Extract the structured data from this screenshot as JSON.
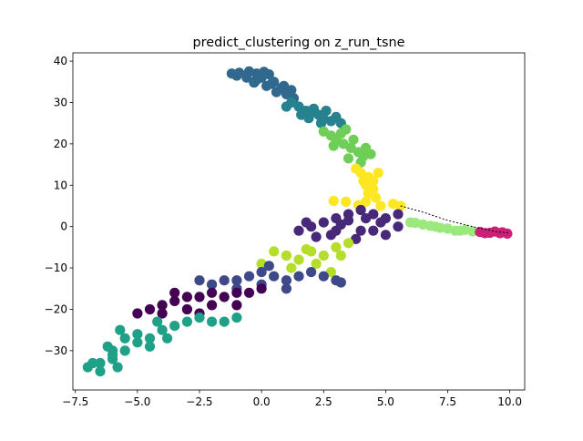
{
  "chart_data": {
    "type": "scatter",
    "title": "predict_clustering on z_run_tsne",
    "xlabel": "",
    "ylabel": "",
    "xlim": [
      -7.6,
      10.6
    ],
    "ylim": [
      -39.5,
      42
    ],
    "x_ticks": [
      -7.5,
      -5.0,
      -2.5,
      0.0,
      2.5,
      5.0,
      7.5,
      10.0
    ],
    "x_tick_labels": [
      "−7.5",
      "−5.0",
      "−2.5",
      "0.0",
      "2.5",
      "5.0",
      "7.5",
      "10.0"
    ],
    "y_ticks": [
      -30,
      -20,
      -10,
      0,
      10,
      20,
      30,
      40
    ],
    "y_tick_labels": [
      "−30",
      "−20",
      "−10",
      "0",
      "10",
      "20",
      "30",
      "40"
    ],
    "grid": false,
    "legend": "none",
    "clusters": [
      {
        "color": "#31688e",
        "points": [
          [
            -1.2,
            37
          ],
          [
            -1,
            36.5
          ],
          [
            -0.5,
            37.5
          ],
          [
            -0.2,
            37
          ],
          [
            0,
            36
          ],
          [
            0.3,
            36.8
          ],
          [
            0.5,
            35
          ],
          [
            0.2,
            34
          ],
          [
            -0.2,
            35.5
          ],
          [
            -0.6,
            36
          ],
          [
            0.8,
            33.5
          ],
          [
            1,
            32
          ],
          [
            0.6,
            32.5
          ],
          [
            1.3,
            31
          ],
          [
            -0.9,
            37.2
          ],
          [
            0.1,
            37.4
          ],
          [
            0.4,
            34.5
          ],
          [
            0.9,
            34
          ],
          [
            1.2,
            33
          ],
          [
            -0.3,
            34.8
          ]
        ]
      },
      {
        "color": "#26828e",
        "points": [
          [
            1.2,
            30
          ],
          [
            1.5,
            29
          ],
          [
            1.8,
            28
          ],
          [
            2,
            27.5
          ],
          [
            2.3,
            27
          ],
          [
            2.5,
            26
          ],
          [
            2.8,
            25.5
          ],
          [
            1.6,
            27
          ],
          [
            2.1,
            28.5
          ],
          [
            2.6,
            28
          ],
          [
            3,
            26.5
          ],
          [
            1,
            29
          ],
          [
            2.4,
            25
          ],
          [
            3.2,
            25
          ],
          [
            1.9,
            26.2
          ]
        ]
      },
      {
        "color": "#6ece58",
        "points": [
          [
            2.5,
            23
          ],
          [
            2.8,
            22
          ],
          [
            3,
            21
          ],
          [
            3.3,
            20
          ],
          [
            3.6,
            19
          ],
          [
            3.9,
            18
          ],
          [
            4.1,
            17
          ],
          [
            3.2,
            22.5
          ],
          [
            3.7,
            21
          ],
          [
            4.2,
            19
          ],
          [
            4.4,
            17.5
          ],
          [
            3.5,
            16.5
          ],
          [
            2.9,
            19.5
          ],
          [
            4,
            15.5
          ],
          [
            3.4,
            23.5
          ]
        ]
      },
      {
        "color": "#fde725",
        "points": [
          [
            3.8,
            14
          ],
          [
            4,
            13
          ],
          [
            4.3,
            12
          ],
          [
            4.5,
            11
          ],
          [
            4.2,
            10
          ],
          [
            4.5,
            9
          ],
          [
            4.3,
            8
          ],
          [
            4.6,
            7
          ],
          [
            4.2,
            6
          ],
          [
            4.8,
            5
          ],
          [
            5.3,
            5.5
          ],
          [
            5.6,
            5
          ],
          [
            3.4,
            6
          ],
          [
            2.9,
            6.2
          ],
          [
            3.9,
            5.2
          ],
          [
            4.7,
            13
          ],
          [
            4.1,
            11
          ]
        ]
      },
      {
        "color": "#482878",
        "points": [
          [
            1.5,
            -1
          ],
          [
            2,
            0
          ],
          [
            2.5,
            1
          ],
          [
            3,
            2
          ],
          [
            3.5,
            3
          ],
          [
            4,
            4
          ],
          [
            4.5,
            3
          ],
          [
            5,
            2
          ],
          [
            5.5,
            3
          ],
          [
            3,
            -1
          ],
          [
            4,
            -1
          ],
          [
            3.5,
            1.5
          ],
          [
            2.8,
            -2
          ],
          [
            4.5,
            -1
          ],
          [
            5,
            -2
          ],
          [
            5.5,
            0
          ],
          [
            4.8,
            1
          ],
          [
            2.2,
            -2.5
          ],
          [
            3.2,
            0.5
          ],
          [
            4.2,
            2
          ],
          [
            1.8,
            1
          ],
          [
            3.8,
            -3
          ]
        ]
      },
      {
        "color": "#b5de2b",
        "points": [
          [
            0.5,
            -6
          ],
          [
            1,
            -7
          ],
          [
            1.5,
            -8
          ],
          [
            2,
            -6
          ],
          [
            2.5,
            -7
          ],
          [
            3,
            -5
          ],
          [
            3.5,
            -4
          ],
          [
            2.2,
            -9
          ],
          [
            1.2,
            -10
          ],
          [
            0,
            -9
          ],
          [
            2.8,
            -11
          ],
          [
            1.8,
            -5.5
          ],
          [
            3.2,
            -7
          ]
        ]
      },
      {
        "color": "#3e4989",
        "points": [
          [
            -2,
            -14
          ],
          [
            -1.5,
            -13
          ],
          [
            -1,
            -13
          ],
          [
            -0.5,
            -12
          ],
          [
            0,
            -11
          ],
          [
            0.5,
            -12
          ],
          [
            1,
            -13
          ],
          [
            1.5,
            -12
          ],
          [
            2,
            -11
          ],
          [
            2.5,
            -12
          ],
          [
            3,
            -13
          ],
          [
            -1,
            -15
          ],
          [
            0,
            -14
          ],
          [
            1,
            -15
          ],
          [
            -2.5,
            -13
          ],
          [
            0.3,
            -9.5
          ],
          [
            3.2,
            -13.5
          ]
        ]
      },
      {
        "color": "#440154",
        "points": [
          [
            -5,
            -21
          ],
          [
            -4.5,
            -20
          ],
          [
            -4,
            -19
          ],
          [
            -3.5,
            -18
          ],
          [
            -3,
            -17
          ],
          [
            -2.5,
            -17
          ],
          [
            -2,
            -16
          ],
          [
            -1.5,
            -17
          ],
          [
            -1,
            -16
          ],
          [
            -0.5,
            -16
          ],
          [
            0,
            -15
          ],
          [
            -3,
            -20
          ],
          [
            -2,
            -19
          ],
          [
            -4,
            -21
          ],
          [
            -1,
            -19
          ],
          [
            -2.5,
            -21
          ],
          [
            -3.5,
            -16
          ]
        ]
      },
      {
        "color": "#1fa187",
        "points": [
          [
            -7,
            -34
          ],
          [
            -6.5,
            -33
          ],
          [
            -6,
            -32
          ],
          [
            -6.5,
            -35
          ],
          [
            -6,
            -31
          ],
          [
            -5.5,
            -30
          ],
          [
            -5,
            -28
          ],
          [
            -4.5,
            -27
          ],
          [
            -4,
            -25
          ],
          [
            -3.5,
            -24
          ],
          [
            -3,
            -23
          ],
          [
            -5,
            -26
          ],
          [
            -5.5,
            -27
          ],
          [
            -4.5,
            -29
          ],
          [
            -6,
            -30
          ],
          [
            -2.5,
            -22
          ],
          [
            -2,
            -23
          ],
          [
            -1.5,
            -23
          ],
          [
            -1,
            -22
          ],
          [
            -6.8,
            -33
          ],
          [
            -5.8,
            -34
          ],
          [
            -3.8,
            -27
          ],
          [
            -4.2,
            -23
          ],
          [
            -5.7,
            -25
          ],
          [
            -6.2,
            -29
          ]
        ]
      },
      {
        "color": "#9be97c",
        "points": [
          [
            6,
            1
          ],
          [
            6.5,
            0.5
          ],
          [
            7,
            0
          ],
          [
            7.5,
            -0.5
          ],
          [
            8,
            -1
          ],
          [
            8.5,
            -1.2
          ],
          [
            6.2,
            0.9
          ],
          [
            7.2,
            -0.3
          ],
          [
            8.2,
            -0.8
          ],
          [
            6.8,
            0.2
          ],
          [
            7.8,
            -1
          ]
        ]
      },
      {
        "color": "#cc1f77",
        "points": [
          [
            8.8,
            -1.3
          ],
          [
            9.2,
            -1.5
          ],
          [
            9.6,
            -1.6
          ],
          [
            9.9,
            -1.7
          ],
          [
            9.4,
            -1.2
          ],
          [
            9,
            -1.6
          ],
          [
            9.7,
            -1.4
          ]
        ]
      }
    ],
    "trajectory": {
      "color": "#000000",
      "points": [
        [
          5.6,
          5
        ],
        [
          6.5,
          3.5
        ],
        [
          7.5,
          1.5
        ],
        [
          8.5,
          0
        ],
        [
          9.5,
          -1.3
        ],
        [
          10,
          -1.5
        ]
      ]
    }
  }
}
